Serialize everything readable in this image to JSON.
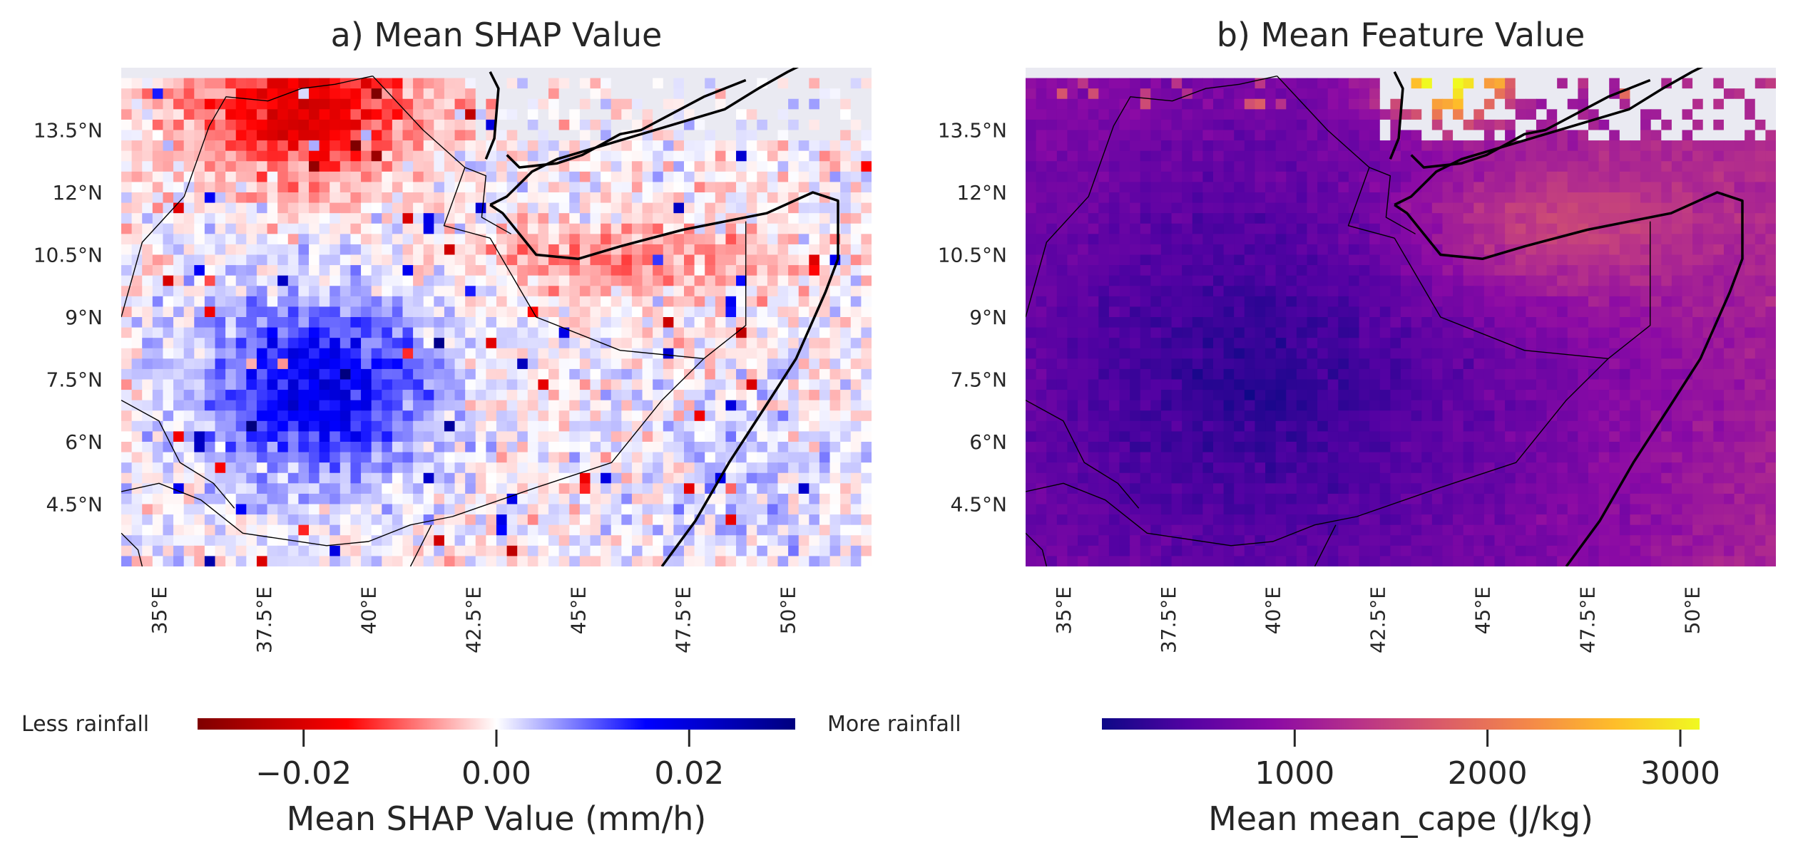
{
  "chart_data": [
    {
      "type": "heatmap",
      "title": "a) Mean SHAP Value",
      "colormap": "seismic_r",
      "colorbar": {
        "label": "Mean SHAP Value (mm/h)",
        "ticks": [
          "−0.02",
          "0.00",
          "0.02"
        ],
        "tick_values": [
          -0.02,
          0.0,
          0.02
        ],
        "range": [
          -0.031,
          0.031
        ],
        "left_label": "Less rainfall",
        "right_label": "More rainfall",
        "colors": [
          "#7f0000",
          "#ff0000",
          "#ffffff",
          "#0000ff",
          "#00007f"
        ]
      },
      "x_ticks": [
        "35°E",
        "37.5°E",
        "40°E",
        "42.5°E",
        "45°E",
        "47.5°E",
        "50°E"
      ],
      "y_ticks": [
        "13.5°N",
        "12°N",
        "10.5°N",
        "9°N",
        "7.5°N",
        "6°N",
        "4.5°N"
      ],
      "lon_range": [
        34.1,
        52.0
      ],
      "lat_range": [
        3.0,
        15.0
      ],
      "pattern": {
        "positive_center": [
          38.8,
          7.3
        ],
        "positive_peak": 0.018,
        "negative_center": [
          38.5,
          14.0
        ],
        "negative_peak": -0.02,
        "gulf_band_center": [
          46.0,
          10.4
        ],
        "gulf_band_peak": -0.008,
        "noise": 0.005
      }
    },
    {
      "type": "heatmap",
      "title": "b) Mean Feature Value",
      "colormap": "plasma",
      "colorbar": {
        "label": "Mean mean_cape (J/kg)",
        "ticks": [
          "1000",
          "2000",
          "3000"
        ],
        "tick_values": [
          1000,
          2000,
          3000
        ],
        "range": [
          0,
          3100
        ],
        "colors": [
          "#0d0887",
          "#5302a3",
          "#8b0aa5",
          "#b83289",
          "#db5c68",
          "#f48849",
          "#febd2a",
          "#f0f921"
        ]
      },
      "x_ticks": [
        "35°E",
        "37.5°E",
        "40°E",
        "42.5°E",
        "45°E",
        "47.5°E",
        "50°E"
      ],
      "y_ticks": [
        "13.5°N",
        "12°N",
        "10.5°N",
        "9°N",
        "7.5°N",
        "6°N",
        "4.5°N"
      ],
      "lon_range": [
        34.1,
        52.0
      ],
      "lat_range": [
        3.0,
        15.0
      ],
      "pattern": {
        "low_center": [
          39.5,
          7.5
        ],
        "low_value": 150,
        "high_center": [
          44.2,
          14.6
        ],
        "high_value": 3000,
        "coastal_gradient": 1400,
        "noise": 120
      }
    }
  ],
  "missing_color": "#eaeaf2"
}
